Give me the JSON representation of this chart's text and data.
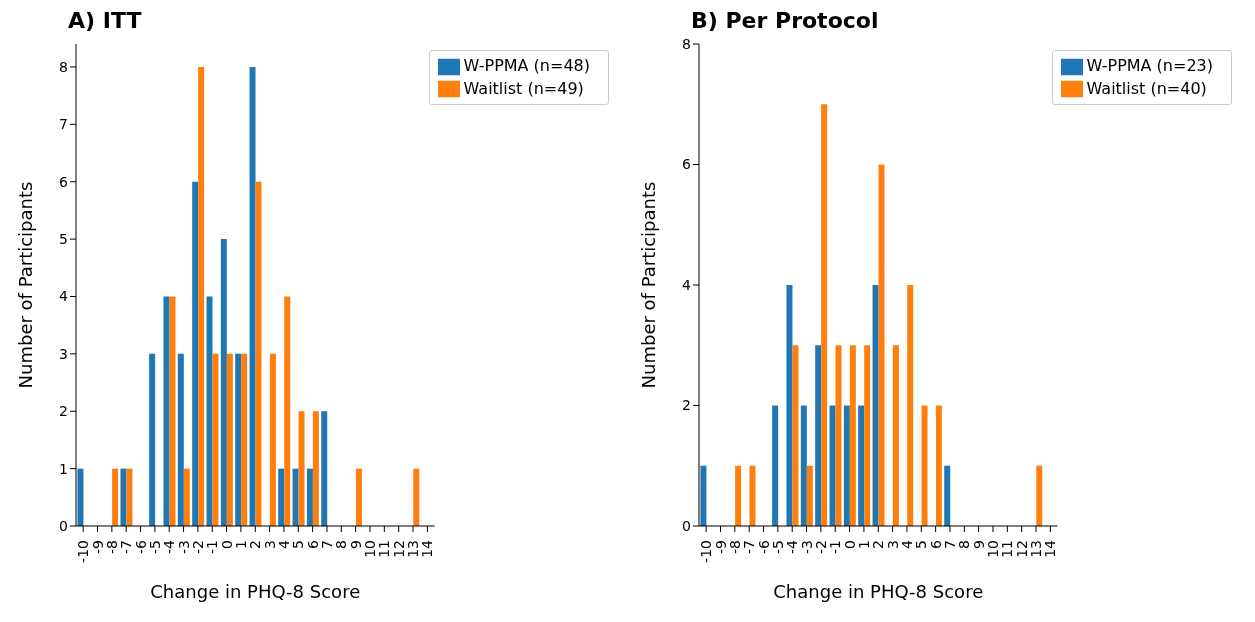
{
  "chart_data": [
    {
      "type": "bar",
      "title": "A) ITT",
      "xlabel": "Change in PHQ-8 Score",
      "ylabel": "Number of Participants",
      "categories": [
        "-10",
        "-9",
        "-8",
        "-7",
        "-6",
        "-5",
        "-4",
        "-3",
        "-2",
        "-1",
        "0",
        "1",
        "2",
        "3",
        "4",
        "5",
        "6",
        "7",
        "8",
        "9",
        "10",
        "11",
        "12",
        "13",
        "14"
      ],
      "series": [
        {
          "name": "W-PPMA (n=48)",
          "color": "#1f77b4",
          "values": [
            1,
            0,
            0,
            1,
            0,
            3,
            4,
            3,
            6,
            4,
            5,
            3,
            8,
            0,
            1,
            1,
            1,
            2,
            0,
            0,
            0,
            0,
            0,
            0,
            0
          ]
        },
        {
          "name": "Waitlist (n=49)",
          "color": "#ff7f0e",
          "values": [
            0,
            0,
            1,
            1,
            0,
            0,
            4,
            1,
            8,
            3,
            3,
            3,
            6,
            3,
            4,
            2,
            2,
            0,
            0,
            1,
            0,
            0,
            0,
            1,
            0
          ]
        }
      ],
      "ylim": [
        0,
        8.4
      ],
      "yticks": [
        0,
        1,
        2,
        3,
        4,
        5,
        6,
        7,
        8
      ],
      "grid": false,
      "legend": "top right"
    },
    {
      "type": "bar",
      "title": "B) Per Protocol",
      "xlabel": "Change in PHQ-8 Score",
      "ylabel": "Number of Participants",
      "categories": [
        "-10",
        "-9",
        "-8",
        "-7",
        "-6",
        "-5",
        "-4",
        "-3",
        "-2",
        "-1",
        "0",
        "1",
        "2",
        "3",
        "4",
        "5",
        "6",
        "7",
        "8",
        "9",
        "10",
        "11",
        "12",
        "13",
        "14"
      ],
      "series": [
        {
          "name": "W-PPMA (n=23)",
          "color": "#1f77b4",
          "values": [
            1,
            0,
            0,
            0,
            0,
            2,
            4,
            2,
            3,
            2,
            2,
            2,
            4,
            0,
            0,
            0,
            0,
            1,
            0,
            0,
            0,
            0,
            0,
            0,
            0
          ]
        },
        {
          "name": "Waitlist (n=40)",
          "color": "#ff7f0e",
          "values": [
            0,
            0,
            1,
            1,
            0,
            0,
            3,
            1,
            7,
            3,
            3,
            3,
            6,
            3,
            4,
            2,
            2,
            0,
            0,
            0,
            0,
            0,
            0,
            1,
            0
          ]
        }
      ],
      "ylim": [
        0,
        8
      ],
      "yticks": [
        0,
        2,
        4,
        6,
        8
      ],
      "grid": false,
      "legend": "top right"
    }
  ]
}
